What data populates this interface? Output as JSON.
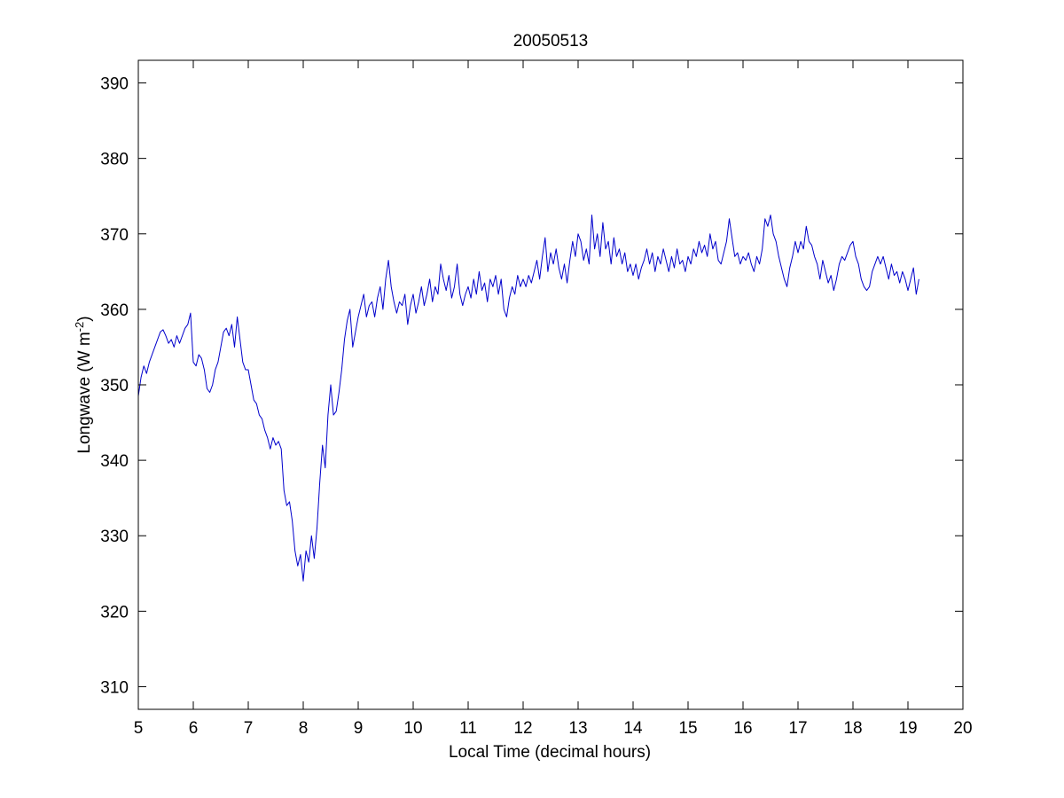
{
  "chart_data": {
    "type": "line",
    "title": "20050513",
    "xlabel": "Local Time (decimal hours)",
    "ylabel": {
      "main": "Longwave (W m",
      "superscript": "-2",
      "suffix": ")"
    },
    "xlim": [
      5,
      20
    ],
    "ylim": [
      307,
      393
    ],
    "xticks": [
      5,
      6,
      7,
      8,
      9,
      10,
      11,
      12,
      13,
      14,
      15,
      16,
      17,
      18,
      19,
      20
    ],
    "yticks": [
      310,
      320,
      330,
      340,
      350,
      360,
      370,
      380,
      390
    ],
    "grid": false,
    "line_color": "#0000cc",
    "series": [
      {
        "points": [
          [
            5.0,
            348.5
          ],
          [
            5.05,
            351
          ],
          [
            5.1,
            352.5
          ],
          [
            5.15,
            351.5
          ],
          [
            5.2,
            353
          ],
          [
            5.25,
            354
          ],
          [
            5.3,
            355
          ],
          [
            5.35,
            356
          ],
          [
            5.4,
            357
          ],
          [
            5.45,
            357.3
          ],
          [
            5.5,
            356.5
          ],
          [
            5.55,
            355.5
          ],
          [
            5.6,
            356
          ],
          [
            5.65,
            355
          ],
          [
            5.7,
            356.5
          ],
          [
            5.75,
            355.5
          ],
          [
            5.8,
            356.5
          ],
          [
            5.85,
            357.5
          ],
          [
            5.9,
            358
          ],
          [
            5.95,
            359.5
          ],
          [
            6.0,
            353
          ],
          [
            6.05,
            352.5
          ],
          [
            6.1,
            354
          ],
          [
            6.15,
            353.5
          ],
          [
            6.2,
            352
          ],
          [
            6.25,
            349.5
          ],
          [
            6.3,
            349
          ],
          [
            6.35,
            350
          ],
          [
            6.4,
            352
          ],
          [
            6.45,
            353
          ],
          [
            6.5,
            355
          ],
          [
            6.55,
            357
          ],
          [
            6.6,
            357.5
          ],
          [
            6.65,
            356.5
          ],
          [
            6.7,
            358
          ],
          [
            6.75,
            355
          ],
          [
            6.8,
            359
          ],
          [
            6.85,
            356
          ],
          [
            6.9,
            353
          ],
          [
            6.95,
            352
          ],
          [
            7.0,
            352
          ],
          [
            7.05,
            350
          ],
          [
            7.1,
            348
          ],
          [
            7.15,
            347.5
          ],
          [
            7.2,
            346
          ],
          [
            7.25,
            345.5
          ],
          [
            7.3,
            344
          ],
          [
            7.35,
            343
          ],
          [
            7.4,
            341.5
          ],
          [
            7.45,
            343
          ],
          [
            7.5,
            342
          ],
          [
            7.55,
            342.5
          ],
          [
            7.6,
            341.5
          ],
          [
            7.65,
            336
          ],
          [
            7.7,
            334
          ],
          [
            7.75,
            334.5
          ],
          [
            7.8,
            332
          ],
          [
            7.85,
            328
          ],
          [
            7.9,
            326
          ],
          [
            7.95,
            327.5
          ],
          [
            8.0,
            324
          ],
          [
            8.05,
            328
          ],
          [
            8.1,
            326.5
          ],
          [
            8.15,
            330
          ],
          [
            8.2,
            327
          ],
          [
            8.25,
            331
          ],
          [
            8.3,
            337
          ],
          [
            8.35,
            342
          ],
          [
            8.4,
            339
          ],
          [
            8.45,
            346
          ],
          [
            8.5,
            350
          ],
          [
            8.55,
            346
          ],
          [
            8.6,
            346.5
          ],
          [
            8.65,
            349
          ],
          [
            8.7,
            352
          ],
          [
            8.75,
            356
          ],
          [
            8.8,
            358.5
          ],
          [
            8.85,
            360
          ],
          [
            8.9,
            355
          ],
          [
            8.95,
            357
          ],
          [
            9.0,
            359
          ],
          [
            9.05,
            360.5
          ],
          [
            9.1,
            362
          ],
          [
            9.15,
            359
          ],
          [
            9.2,
            360.5
          ],
          [
            9.25,
            361
          ],
          [
            9.3,
            359
          ],
          [
            9.35,
            361.5
          ],
          [
            9.4,
            363
          ],
          [
            9.45,
            360
          ],
          [
            9.5,
            364
          ],
          [
            9.55,
            366.5
          ],
          [
            9.6,
            363
          ],
          [
            9.65,
            361
          ],
          [
            9.7,
            359.5
          ],
          [
            9.75,
            361
          ],
          [
            9.8,
            360.5
          ],
          [
            9.85,
            362
          ],
          [
            9.9,
            358
          ],
          [
            9.95,
            360.5
          ],
          [
            10.0,
            362
          ],
          [
            10.05,
            359.5
          ],
          [
            10.1,
            361
          ],
          [
            10.15,
            363
          ],
          [
            10.2,
            360.5
          ],
          [
            10.25,
            362
          ],
          [
            10.3,
            364
          ],
          [
            10.35,
            361
          ],
          [
            10.4,
            363
          ],
          [
            10.45,
            362
          ],
          [
            10.5,
            366
          ],
          [
            10.55,
            364
          ],
          [
            10.6,
            362.5
          ],
          [
            10.65,
            364.5
          ],
          [
            10.7,
            361.5
          ],
          [
            10.75,
            363
          ],
          [
            10.8,
            366
          ],
          [
            10.85,
            362
          ],
          [
            10.9,
            360.5
          ],
          [
            10.95,
            362
          ],
          [
            11.0,
            363
          ],
          [
            11.05,
            361.5
          ],
          [
            11.1,
            364
          ],
          [
            11.15,
            362
          ],
          [
            11.2,
            365
          ],
          [
            11.25,
            362.5
          ],
          [
            11.3,
            363.5
          ],
          [
            11.35,
            361
          ],
          [
            11.4,
            364
          ],
          [
            11.45,
            363
          ],
          [
            11.5,
            364.5
          ],
          [
            11.55,
            362
          ],
          [
            11.6,
            364
          ],
          [
            11.65,
            360
          ],
          [
            11.7,
            359
          ],
          [
            11.75,
            361.5
          ],
          [
            11.8,
            363
          ],
          [
            11.85,
            362
          ],
          [
            11.9,
            364.5
          ],
          [
            11.95,
            363
          ],
          [
            12.0,
            364
          ],
          [
            12.05,
            363
          ],
          [
            12.1,
            364.5
          ],
          [
            12.15,
            363.5
          ],
          [
            12.2,
            365
          ],
          [
            12.25,
            366.5
          ],
          [
            12.3,
            364
          ],
          [
            12.35,
            367
          ],
          [
            12.4,
            369.5
          ],
          [
            12.45,
            365
          ],
          [
            12.5,
            367.5
          ],
          [
            12.55,
            366
          ],
          [
            12.6,
            368
          ],
          [
            12.65,
            365.5
          ],
          [
            12.7,
            364
          ],
          [
            12.75,
            366
          ],
          [
            12.8,
            363.5
          ],
          [
            12.85,
            366.5
          ],
          [
            12.9,
            369
          ],
          [
            12.95,
            367
          ],
          [
            13.0,
            370
          ],
          [
            13.05,
            369
          ],
          [
            13.1,
            366.5
          ],
          [
            13.15,
            368
          ],
          [
            13.2,
            366
          ],
          [
            13.25,
            372.5
          ],
          [
            13.3,
            368
          ],
          [
            13.35,
            370
          ],
          [
            13.4,
            367
          ],
          [
            13.45,
            371.5
          ],
          [
            13.5,
            368
          ],
          [
            13.55,
            369
          ],
          [
            13.6,
            366
          ],
          [
            13.65,
            369.5
          ],
          [
            13.7,
            367
          ],
          [
            13.75,
            368
          ],
          [
            13.8,
            366
          ],
          [
            13.85,
            367.5
          ],
          [
            13.9,
            365
          ],
          [
            13.95,
            366
          ],
          [
            14.0,
            364.5
          ],
          [
            14.05,
            366
          ],
          [
            14.1,
            364
          ],
          [
            14.15,
            365.5
          ],
          [
            14.2,
            366.5
          ],
          [
            14.25,
            368
          ],
          [
            14.3,
            366
          ],
          [
            14.35,
            367.5
          ],
          [
            14.4,
            365
          ],
          [
            14.45,
            367
          ],
          [
            14.5,
            366
          ],
          [
            14.55,
            368
          ],
          [
            14.6,
            366.5
          ],
          [
            14.65,
            365
          ],
          [
            14.7,
            367
          ],
          [
            14.75,
            365.5
          ],
          [
            14.8,
            368
          ],
          [
            14.85,
            366
          ],
          [
            14.9,
            366.5
          ],
          [
            14.95,
            365
          ],
          [
            15.0,
            367
          ],
          [
            15.05,
            366
          ],
          [
            15.1,
            368
          ],
          [
            15.15,
            367
          ],
          [
            15.2,
            369
          ],
          [
            15.25,
            367.5
          ],
          [
            15.3,
            368.5
          ],
          [
            15.35,
            367
          ],
          [
            15.4,
            370
          ],
          [
            15.45,
            368
          ],
          [
            15.5,
            369
          ],
          [
            15.55,
            366.5
          ],
          [
            15.6,
            366
          ],
          [
            15.65,
            367.5
          ],
          [
            15.7,
            369
          ],
          [
            15.75,
            372
          ],
          [
            15.8,
            369.5
          ],
          [
            15.85,
            367
          ],
          [
            15.9,
            367.5
          ],
          [
            15.95,
            366
          ],
          [
            16.0,
            367
          ],
          [
            16.05,
            366.5
          ],
          [
            16.1,
            367.5
          ],
          [
            16.15,
            366
          ],
          [
            16.2,
            365
          ],
          [
            16.25,
            367
          ],
          [
            16.3,
            366
          ],
          [
            16.35,
            368
          ],
          [
            16.4,
            372
          ],
          [
            16.45,
            371
          ],
          [
            16.5,
            372.5
          ],
          [
            16.55,
            370
          ],
          [
            16.6,
            369
          ],
          [
            16.65,
            367
          ],
          [
            16.7,
            365.5
          ],
          [
            16.75,
            364
          ],
          [
            16.8,
            363
          ],
          [
            16.85,
            365.5
          ],
          [
            16.9,
            367
          ],
          [
            16.95,
            369
          ],
          [
            17.0,
            367.5
          ],
          [
            17.05,
            369
          ],
          [
            17.1,
            368
          ],
          [
            17.15,
            371
          ],
          [
            17.2,
            369
          ],
          [
            17.25,
            368.5
          ],
          [
            17.3,
            367
          ],
          [
            17.35,
            366
          ],
          [
            17.4,
            364
          ],
          [
            17.45,
            366.5
          ],
          [
            17.5,
            365
          ],
          [
            17.55,
            363.5
          ],
          [
            17.6,
            364.5
          ],
          [
            17.65,
            362.5
          ],
          [
            17.7,
            364
          ],
          [
            17.75,
            366
          ],
          [
            17.8,
            367
          ],
          [
            17.85,
            366.5
          ],
          [
            17.9,
            367.5
          ],
          [
            17.95,
            368.5
          ],
          [
            18.0,
            369
          ],
          [
            18.05,
            367
          ],
          [
            18.1,
            366
          ],
          [
            18.15,
            364
          ],
          [
            18.2,
            363
          ],
          [
            18.25,
            362.5
          ],
          [
            18.3,
            363
          ],
          [
            18.35,
            365
          ],
          [
            18.4,
            366
          ],
          [
            18.45,
            367
          ],
          [
            18.5,
            366
          ],
          [
            18.55,
            367
          ],
          [
            18.6,
            365.5
          ],
          [
            18.65,
            364
          ],
          [
            18.7,
            366
          ],
          [
            18.75,
            364.5
          ],
          [
            18.8,
            365
          ],
          [
            18.85,
            363.5
          ],
          [
            18.9,
            365
          ],
          [
            18.95,
            364
          ],
          [
            19.0,
            362.5
          ],
          [
            19.05,
            364
          ],
          [
            19.1,
            365.5
          ],
          [
            19.15,
            362
          ],
          [
            19.2,
            364
          ]
        ]
      }
    ]
  }
}
